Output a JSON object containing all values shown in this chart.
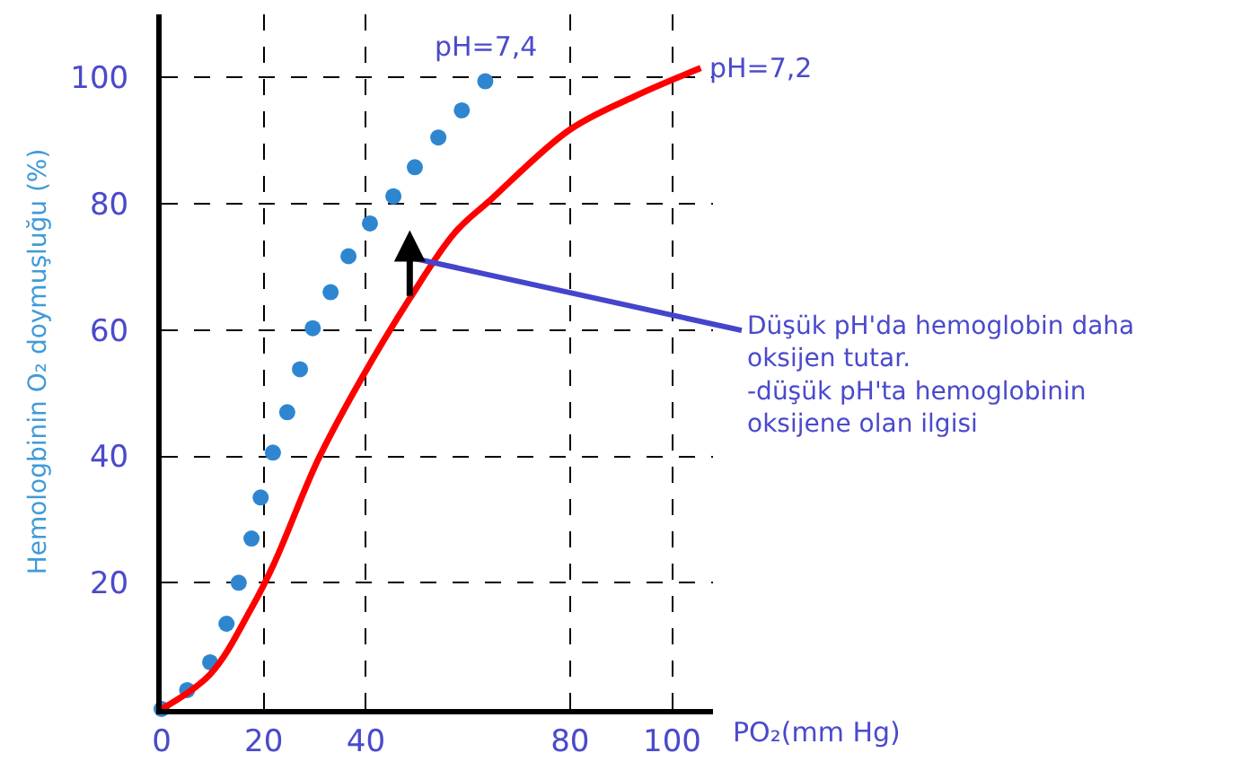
{
  "chart_data": {
    "type": "line",
    "xlabel": "PO₂(mm Hg)",
    "ylabel": "Hemologbinin O₂ doymuşluğu (%)",
    "xlim": [
      0,
      108
    ],
    "ylim": [
      0,
      110
    ],
    "xticks": [
      0,
      20,
      40,
      80,
      100
    ],
    "yticks": [
      20,
      40,
      60,
      80,
      100
    ],
    "grid": true,
    "legend": false,
    "line_style": "solid",
    "marker": "none",
    "series": [
      {
        "name": "pH=7,4",
        "type": "scatter",
        "marker": "circle",
        "color": "#2e86d0",
        "x": [
          0,
          5,
          9.5,
          12.7,
          15.1,
          17.6,
          19.4,
          21.8,
          24.6,
          27.1,
          29.6,
          33.1,
          36.6,
          40.8,
          45.4,
          49.6,
          54.2,
          58.8,
          63.4
        ],
        "values": [
          0,
          3,
          7.4,
          13.5,
          20,
          27,
          33.5,
          40.6,
          47,
          53.8,
          60.3,
          66,
          71.7,
          76.9,
          81.2,
          85.8,
          90.5,
          94.8,
          99.4
        ]
      },
      {
        "name": "pH=7,2",
        "color": "#ff0000",
        "x": [
          0,
          9.5,
          17.6,
          22,
          30.6,
          38.7,
          48.6,
          57.4,
          64.4,
          79.9,
          92.6,
          105.6
        ],
        "values": [
          0,
          5.5,
          16,
          23,
          39.4,
          51.7,
          65,
          75.4,
          80.6,
          91.7,
          97,
          101.5
        ]
      }
    ],
    "annotations": [
      "Düşük pH'da hemoglobin daha\noksijen tutar.\n-düşük pH'ta hemoglobinin\noksijene olan ilgisi"
    ]
  }
}
